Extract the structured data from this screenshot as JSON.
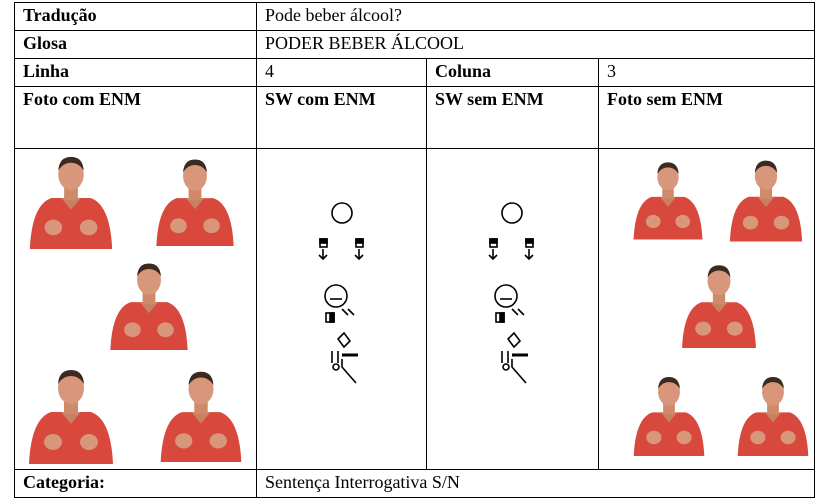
{
  "table": {
    "rows": [
      [
        "Tradução",
        "Pode beber álcool?"
      ],
      [
        "Glosa",
        "PODER BEBER ÁLCOOL"
      ],
      [
        "Linha",
        "4",
        "Coluna",
        "3"
      ],
      [
        "Foto com ENM",
        "SW com ENM",
        "SW sem ENM",
        "Foto sem ENM"
      ],
      [
        "Categoria:",
        "Sentença Interrogativa S/N"
      ]
    ]
  }
}
